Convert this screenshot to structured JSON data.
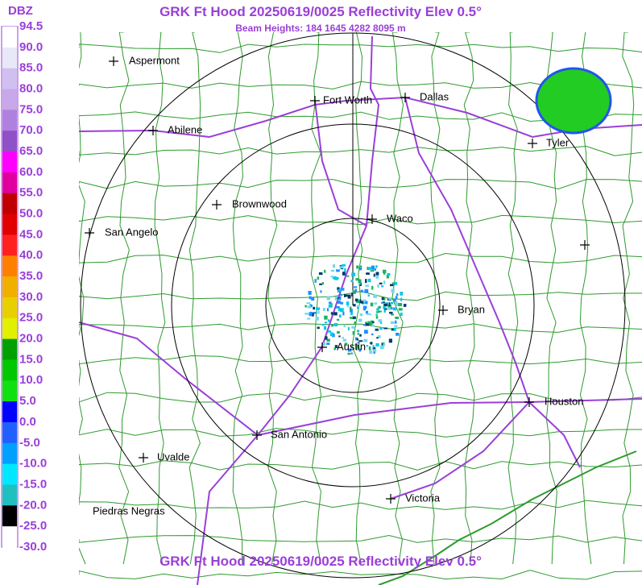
{
  "header": {
    "title": "GRK Ft Hood 20250619/0025 Reflectivity Elev 0.5°",
    "subtitle": "Beam Heights: 184 1645 4282 8095 m"
  },
  "footer": {
    "title": "GRK Ft Hood 20250619/0025 Reflectivity Elev 0.5°"
  },
  "legend": {
    "unit": "DBZ",
    "labels": [
      "94.5",
      "90.0",
      "85.0",
      "80.0",
      "75.0",
      "70.0",
      "65.0",
      "60.0",
      "55.0",
      "50.0",
      "45.0",
      "40.0",
      "35.0",
      "30.0",
      "25.0",
      "20.0",
      "15.0",
      "10.0",
      "5.0",
      "0.0",
      "-5.0",
      "-10.0",
      "-15.0",
      "-20.0",
      "-25.0",
      "-30.0"
    ]
  },
  "cities": [
    "Aspermont",
    "Fort Worth",
    "Dallas",
    "Abilene",
    "Tyler",
    "Brownwood",
    "Waco",
    "San Angelo",
    "Bryan",
    "Austin",
    "Houston",
    "San Antonio",
    "Uvalde",
    "Piedras Negras",
    "Victoria"
  ]
}
